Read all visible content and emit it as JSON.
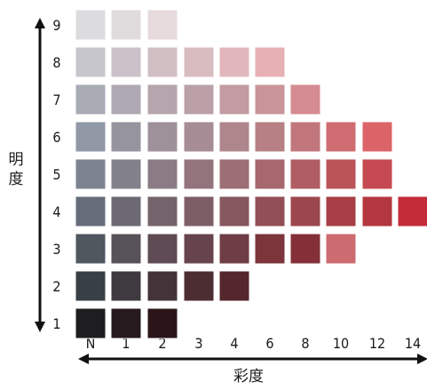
{
  "figure": {
    "vertical_axis_title": "明度",
    "horizontal_axis_title": "彩度",
    "value_labels": [
      "1",
      "2",
      "3",
      "4",
      "5",
      "6",
      "7",
      "8",
      "9"
    ],
    "chroma_labels": [
      "N",
      "1",
      "2",
      "3",
      "4",
      "6",
      "8",
      "10",
      "12",
      "14"
    ]
  },
  "rows": [
    {
      "value": "9",
      "colors": [
        "#dcdcdf",
        "#e0dcde",
        "#e6dadc"
      ]
    },
    {
      "value": "8",
      "colors": [
        "#c6c6cc",
        "#cac2c8",
        "#d2bfc4",
        "#d8bcc0",
        "#e1b7bb",
        "#e7b1b4"
      ]
    },
    {
      "value": "7",
      "colors": [
        "#a9abb5",
        "#aea8b2",
        "#b5a5ac",
        "#bba0a8",
        "#c29ca2",
        "#c9959a",
        "#d48b91"
      ]
    },
    {
      "value": "6",
      "colors": [
        "#9199a6",
        "#96959f",
        "#9e919a",
        "#a68c94",
        "#ae868c",
        "#b78084",
        "#c1767c",
        "#cf6c72",
        "#dc6468"
      ]
    },
    {
      "value": "5",
      "colors": [
        "#7c8391",
        "#82808b",
        "#8b7b85",
        "#93747d",
        "#9c6e75",
        "#a6676d",
        "#b05d63",
        "#bb5459",
        "#c64a51"
      ]
    },
    {
      "value": "4",
      "colors": [
        "#666d7a",
        "#6d6974",
        "#75636c",
        "#7e5e66",
        "#87575e",
        "#924f56",
        "#9c474d",
        "#a83f46",
        "#b4363e",
        "#c42c3a"
      ]
    },
    {
      "value": "3",
      "colors": [
        "#4f575f",
        "#57525a",
        "#5f4b53",
        "#67444c",
        "#6f3e45",
        "#7b353b",
        "#853038",
        "#cc6b70"
      ]
    },
    {
      "value": "2",
      "colors": [
        "#383f45",
        "#3e3a3f",
        "#443338",
        "#4b2d32",
        "#53272c"
      ]
    },
    {
      "value": "1",
      "colors": [
        "#1e1e21",
        "#261a1f",
        "#2c1519"
      ]
    }
  ]
}
